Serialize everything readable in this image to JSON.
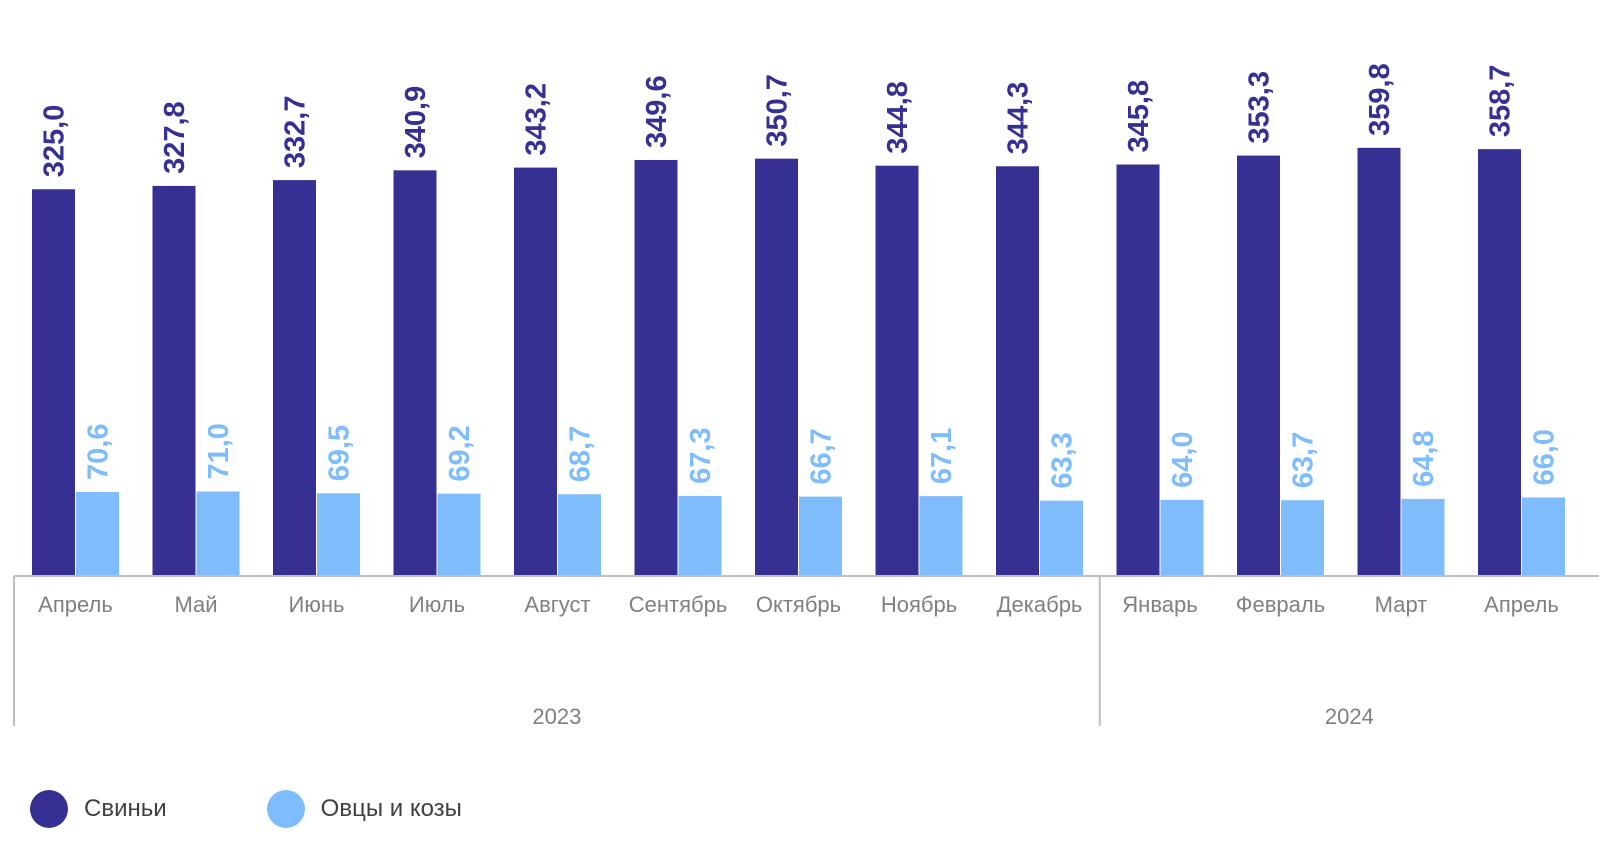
{
  "chart_data": {
    "type": "bar",
    "categories": [
      "Апрель",
      "Май",
      "Июнь",
      "Июль",
      "Август",
      "Сентябрь",
      "Октябрь",
      "Ноябрь",
      "Декабрь",
      "Январь",
      "Февраль",
      "Март",
      "Апрель"
    ],
    "groups": [
      {
        "label": "2023",
        "count": 9
      },
      {
        "label": "2024",
        "count": 4
      }
    ],
    "series": [
      {
        "name": "Свиньи",
        "color": "#363093",
        "values": [
          325.0,
          327.8,
          332.7,
          340.9,
          343.2,
          349.6,
          350.7,
          344.8,
          344.3,
          345.8,
          353.3,
          359.8,
          358.7
        ],
        "labels": [
          "325,0",
          "327,8",
          "332,7",
          "340,9",
          "343,2",
          "349,6",
          "350,7",
          "344,8",
          "344,3",
          "345,8",
          "353,3",
          "359,8",
          "358,7"
        ]
      },
      {
        "name": "Овцы и козы",
        "color": "#7EBCFB",
        "values": [
          70.6,
          71.0,
          69.5,
          69.2,
          68.7,
          67.3,
          66.7,
          67.1,
          63.3,
          64.0,
          63.7,
          64.8,
          66.0
        ],
        "labels": [
          "70,6",
          "71,0",
          "69,5",
          "69,2",
          "68,7",
          "67,3",
          "66,7",
          "67,1",
          "63,3",
          "64,0",
          "63,7",
          "64,8",
          "66,0"
        ]
      }
    ],
    "ylim": [
      0,
      380
    ],
    "legend_position": "bottom-left"
  }
}
